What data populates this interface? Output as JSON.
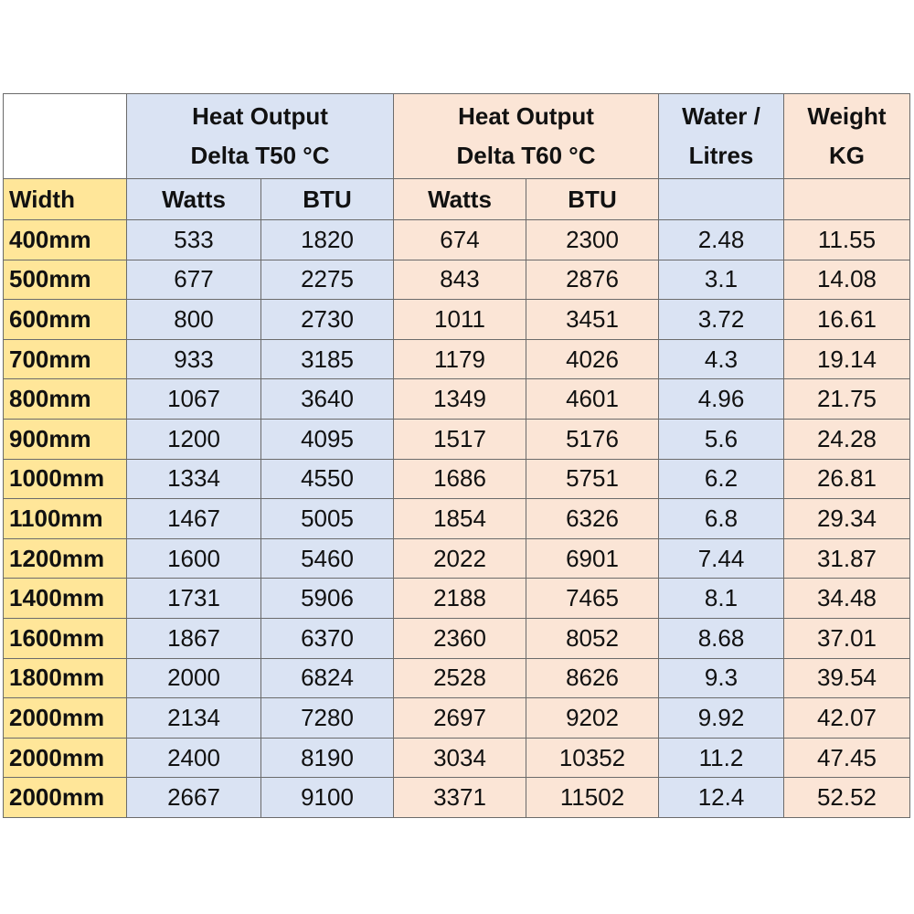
{
  "table": {
    "group_headers": [
      [
        "Heat Output",
        "Delta T50 °C"
      ],
      [
        "Heat Output",
        "Delta T60 °C"
      ],
      [
        "Water /",
        "Litres"
      ],
      [
        "Weight",
        "KG"
      ]
    ],
    "sub_headers": [
      "Width",
      "Watts",
      "BTU",
      "Watts",
      "BTU"
    ],
    "rows": [
      [
        "400mm",
        533,
        1820,
        674,
        2300,
        2.48,
        11.55
      ],
      [
        "500mm",
        677,
        2275,
        843,
        2876,
        3.1,
        14.08
      ],
      [
        "600mm",
        800,
        2730,
        1011,
        3451,
        3.72,
        16.61
      ],
      [
        "700mm",
        933,
        3185,
        1179,
        4026,
        4.3,
        19.14
      ],
      [
        "800mm",
        1067,
        3640,
        1349,
        4601,
        4.96,
        21.75
      ],
      [
        "900mm",
        1200,
        4095,
        1517,
        5176,
        5.6,
        24.28
      ],
      [
        "1000mm",
        1334,
        4550,
        1686,
        5751,
        6.2,
        26.81
      ],
      [
        "1100mm",
        1467,
        5005,
        1854,
        6326,
        6.8,
        29.34
      ],
      [
        "1200mm",
        1600,
        5460,
        2022,
        6901,
        7.44,
        31.87
      ],
      [
        "1400mm",
        1731,
        5906,
        2188,
        7465,
        8.1,
        34.48
      ],
      [
        "1600mm",
        1867,
        6370,
        2360,
        8052,
        8.68,
        37.01
      ],
      [
        "1800mm",
        2000,
        6824,
        2528,
        8626,
        9.3,
        39.54
      ],
      [
        "2000mm",
        2134,
        7280,
        2697,
        9202,
        9.92,
        42.07
      ],
      [
        "2000mm",
        2400,
        8190,
        3034,
        10352,
        11.2,
        47.45
      ],
      [
        "2000mm",
        2667,
        9100,
        3371,
        11502,
        12.4,
        52.52
      ]
    ]
  }
}
